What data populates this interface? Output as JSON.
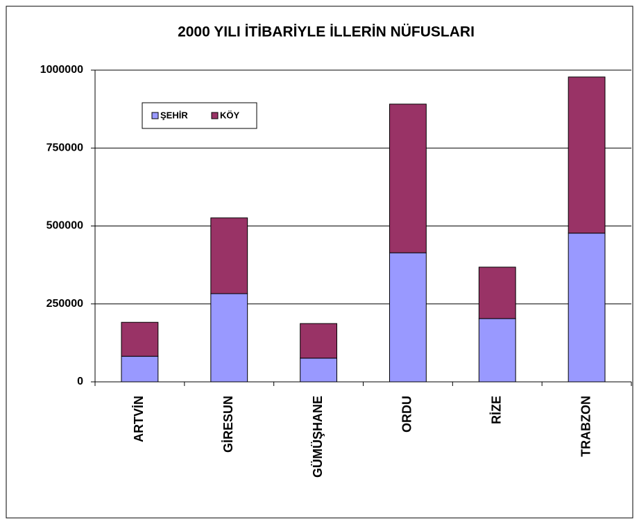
{
  "chart_data": {
    "type": "stacked_bar",
    "title": "2000 YILI İTİBARİYLE İLLERİN NÜFUSLARI",
    "categories": [
      "ARTVİN",
      "GİRESUN",
      "GÜMÜŞHANE",
      "ORDU",
      "RİZE",
      "TRABZON"
    ],
    "series": [
      {
        "name": "ŞEHİR",
        "color": "#9999ff",
        "values": [
          82000,
          283000,
          76000,
          414000,
          203000,
          477000
        ]
      },
      {
        "name": "KÖY",
        "color": "#993366",
        "values": [
          109000,
          243000,
          111000,
          477000,
          165000,
          501000
        ]
      }
    ],
    "ylim": [
      0,
      1000000
    ],
    "yticks": [
      0,
      250000,
      500000,
      750000,
      1000000
    ],
    "grid": true,
    "legend": "upper left"
  }
}
